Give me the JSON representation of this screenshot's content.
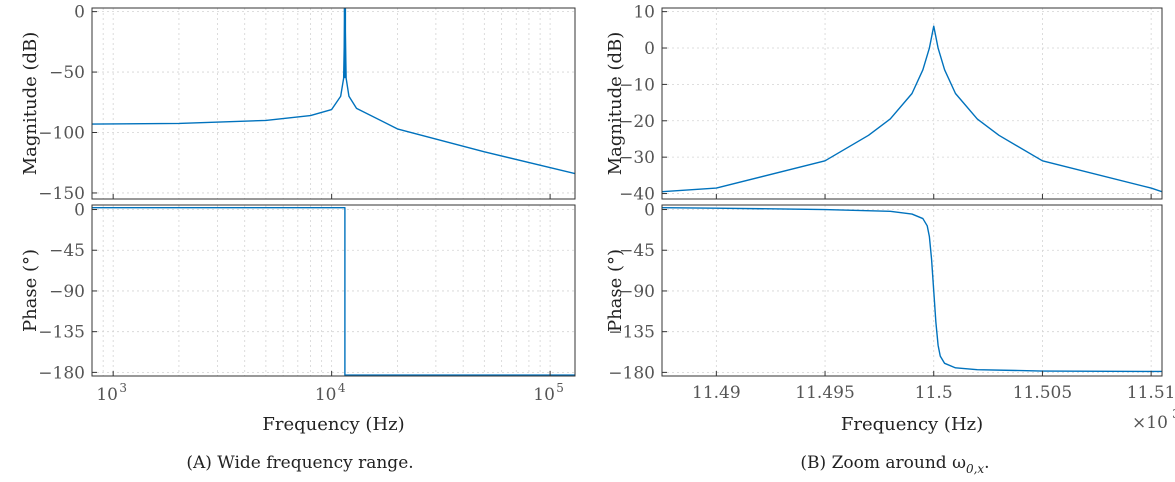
{
  "chart_data": [
    {
      "id": "wide",
      "type": "line",
      "subtitle": "(A) Wide frequency range.",
      "xlabel": "Frequency (Hz)",
      "xscale": "log",
      "xlim": [
        800,
        130000
      ],
      "xticks": [
        {
          "v": 1000,
          "base": "10",
          "exp": "3"
        },
        {
          "v": 10000,
          "base": "10",
          "exp": "4"
        },
        {
          "v": 100000,
          "base": "10",
          "exp": "5"
        }
      ],
      "magnitude": {
        "ylabel": "Magnitude (dB)",
        "ylim": [
          -155,
          3
        ],
        "yticks": [
          0,
          -50,
          -100,
          -150
        ],
        "ytick_labels": [
          "0",
          "−50",
          "−100",
          "−150"
        ],
        "resonance_hz": 11500,
        "series": [
          {
            "x": [
              800,
              2000,
              5000,
              8000,
              10000,
              11000,
              11350,
              11500,
              11650,
              12000,
              13000,
              20000,
              50000,
              130000
            ],
            "y": [
              -93,
              -92.5,
              -90,
              -86,
              -81,
              -70,
              -55,
              3,
              -55,
              -70,
              -80,
              -97,
              -116,
              -134
            ]
          }
        ]
      },
      "phase": {
        "ylabel": "Phase (°)",
        "ylim": [
          -184,
          5
        ],
        "yticks": [
          0,
          -45,
          -90,
          -135,
          -180
        ],
        "ytick_labels": [
          "0",
          "−45",
          "−90",
          "−135",
          "−180"
        ],
        "series": [
          {
            "x": [
              800,
              11500,
              11500,
              130000
            ],
            "y": [
              2,
              2,
              -183,
              -183
            ]
          }
        ]
      },
      "grid": true
    },
    {
      "id": "zoom",
      "type": "line",
      "subtitle": "(B) Zoom around ω",
      "subtitle_sub": "0,x",
      "subtitle_end": ".",
      "xlabel": "Frequency (Hz)",
      "xscale": "linear",
      "xlim": [
        11.4875,
        11.5105
      ],
      "xticks": [
        {
          "v": 11.49,
          "label": "11.49"
        },
        {
          "v": 11.495,
          "label": "11.495"
        },
        {
          "v": 11.5,
          "label": "11.5"
        },
        {
          "v": 11.505,
          "label": "11.505"
        },
        {
          "v": 11.51,
          "label": "11.51"
        }
      ],
      "xmultiplier": {
        "base": "×10",
        "exp": "3"
      },
      "magnitude": {
        "ylabel": "Magnitude (dB)",
        "ylim": [
          -41.5,
          11
        ],
        "yticks": [
          10,
          0,
          -10,
          -20,
          -30,
          -40
        ],
        "ytick_labels": [
          "10",
          "0",
          "−10",
          "−20",
          "−30",
          "−40"
        ],
        "series": [
          {
            "x": [
              11.4875,
              11.49,
              11.495,
              11.497,
              11.498,
              11.499,
              11.4995,
              11.4998,
              11.5,
              11.5002,
              11.5005,
              11.501,
              11.502,
              11.503,
              11.505,
              11.51,
              11.5105
            ],
            "y": [
              -39.5,
              -38.5,
              -31,
              -24,
              -19.5,
              -12.5,
              -6,
              0,
              6,
              0,
              -6,
              -12.5,
              -19.5,
              -24,
              -31,
              -38.5,
              -39.5
            ]
          }
        ]
      },
      "phase": {
        "ylabel": "Phase (°)",
        "ylim": [
          -184,
          5
        ],
        "yticks": [
          0,
          -45,
          -90,
          -135,
          -180
        ],
        "ytick_labels": [
          "0",
          "−45",
          "−90",
          "−135",
          "−180"
        ],
        "series": [
          {
            "x": [
              11.4875,
              11.49,
              11.495,
              11.498,
              11.499,
              11.4995,
              11.4997,
              11.4998,
              11.4999,
              11.5,
              11.5001,
              11.5002,
              11.5003,
              11.5005,
              11.501,
              11.502,
              11.505,
              11.5105
            ],
            "y": [
              2,
              1.5,
              0,
              -2,
              -5,
              -10,
              -18,
              -30,
              -55,
              -90,
              -125,
              -150,
              -162,
              -170,
              -175,
              -177,
              -178.5,
              -179
            ]
          }
        ]
      },
      "grid": true
    }
  ]
}
